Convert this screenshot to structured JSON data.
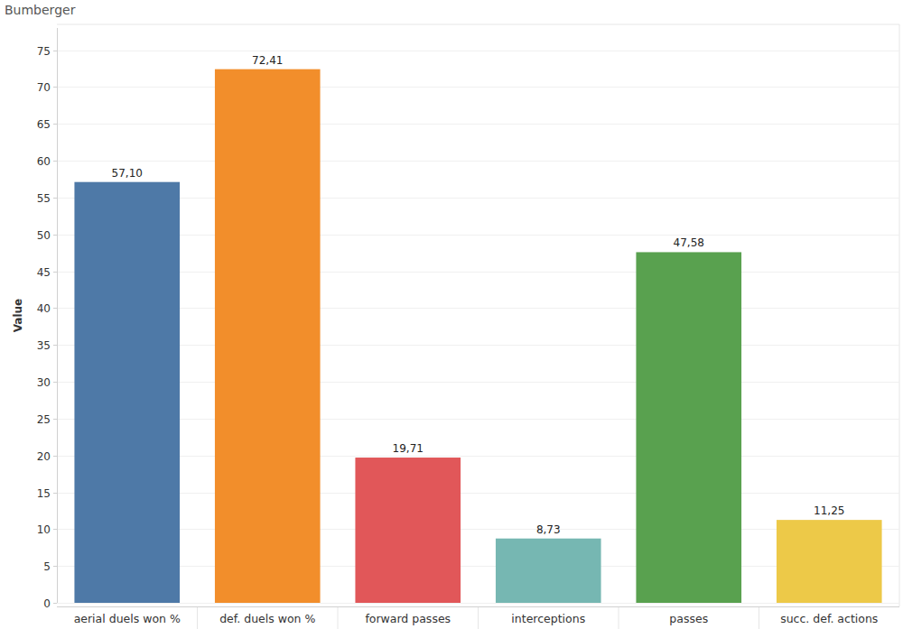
{
  "chart_data": {
    "type": "bar",
    "title": "Bumberger",
    "y_label": "Value",
    "categories": [
      "aerial duels won %",
      "def. duels won %",
      "forward passes",
      "interceptions",
      "passes",
      "succ. def. actions"
    ],
    "values": [
      57.1,
      72.41,
      19.71,
      8.73,
      47.58,
      11.25
    ],
    "value_labels": [
      "57,10",
      "72,41",
      "19,71",
      "8,73",
      "47,58",
      "11,25"
    ],
    "colors": [
      "#4e79a7",
      "#f28e2b",
      "#e15759",
      "#76b7b2",
      "#59a14f",
      "#edc948"
    ],
    "ylim": [
      0,
      78
    ],
    "yticks": [
      0,
      5,
      10,
      15,
      20,
      25,
      30,
      35,
      40,
      45,
      50,
      55,
      60,
      65,
      70,
      75
    ],
    "grid": true,
    "data_labels": true
  }
}
